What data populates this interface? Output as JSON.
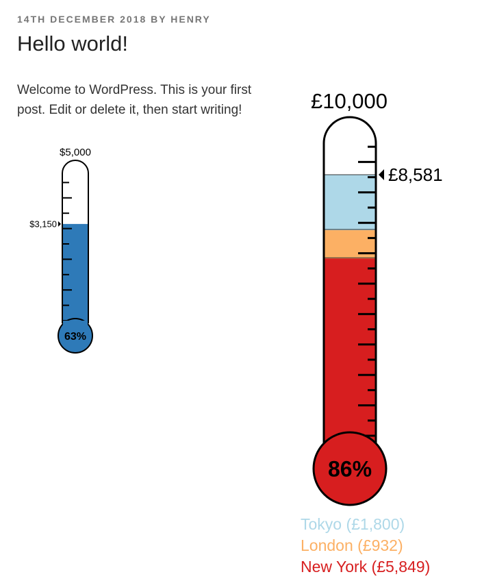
{
  "post": {
    "meta": "14TH DECEMBER 2018 BY HENRY",
    "title": "Hello world!",
    "content": "Welcome to WordPress. This is your first post. Edit or delete it, then start writing!"
  },
  "chart_data": [
    {
      "type": "thermometer",
      "target": 5000,
      "target_label": "$5,000",
      "raised": 3150,
      "raised_label": "$3,150",
      "percent_label": "63%",
      "colors": {
        "fill": "#2e7ab8",
        "outline": "#000000",
        "background": "#ffffff"
      }
    },
    {
      "type": "thermometer",
      "target": 10000,
      "target_label": "£10,000",
      "raised": 8581,
      "raised_label": "£8,581",
      "percent_label": "86%",
      "series": [
        {
          "name": "New York",
          "value": 5849,
          "legend_label": "New York (£5,849)",
          "color": "#d71e1f"
        },
        {
          "name": "London",
          "value": 932,
          "legend_label": "London (£932)",
          "color": "#fcb064"
        },
        {
          "name": "Tokyo",
          "value": 1800,
          "legend_label": "Tokyo (£1,800)",
          "color": "#aed8e8"
        }
      ],
      "legend_order": [
        "Tokyo",
        "London",
        "New York"
      ],
      "colors": {
        "outline": "#000000",
        "background": "#ffffff"
      }
    }
  ]
}
